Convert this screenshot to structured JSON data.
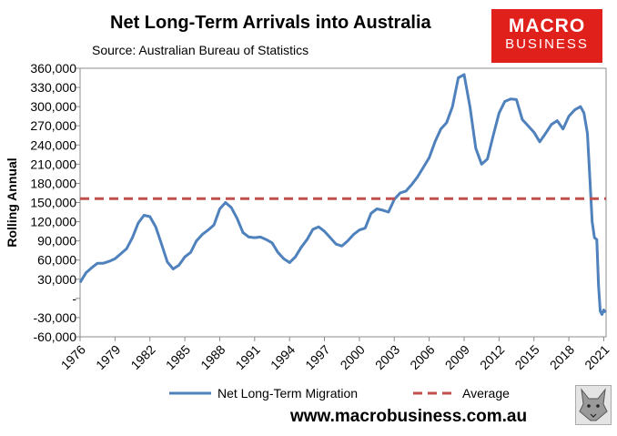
{
  "title": "Net Long-Term Arrivals into Australia",
  "subtitle": "Source: Australian Bureau of Statistics",
  "logo": {
    "top": "MACRO",
    "bottom": "BUSINESS"
  },
  "website": "www.macrobusiness.com.au",
  "colors": {
    "series": "#4f81bd",
    "average": "#c0504d",
    "brand": "#e0201b",
    "frame": "#8c8c8c"
  },
  "icons": {
    "mascot": "wolf-head-icon"
  },
  "chart_data": {
    "type": "line",
    "ylabel": "Rolling Annual",
    "ylim": [
      -60000,
      360000
    ],
    "xlim": [
      1976,
      2021.2
    ],
    "yticks": [
      -60000,
      -30000,
      0,
      30000,
      60000,
      90000,
      120000,
      150000,
      180000,
      210000,
      240000,
      270000,
      300000,
      330000,
      360000
    ],
    "ytick_labels": [
      "-60,000",
      "-30,000",
      "-",
      "30,000",
      "60,000",
      "90,000",
      "120,000",
      "150,000",
      "180,000",
      "210,000",
      "240,000",
      "270,000",
      "300,000",
      "330,000",
      "360,000"
    ],
    "xticks": [
      1976,
      1979,
      1982,
      1985,
      1988,
      1991,
      1994,
      1997,
      2000,
      2003,
      2006,
      2009,
      2012,
      2015,
      2018,
      2021
    ],
    "xtick_labels": [
      "1976",
      "1979",
      "1982",
      "1985",
      "1988",
      "1991",
      "1994",
      "1997",
      "2000",
      "2003",
      "2006",
      "2009",
      "2012",
      "2015",
      "2018",
      "2021"
    ],
    "grid": false,
    "legend": "bottom",
    "series": [
      {
        "name": "Net Long-Term Migration",
        "style": "solid",
        "x": [
          1976,
          1976.5,
          1977,
          1977.5,
          1978,
          1978.5,
          1979,
          1979.5,
          1980,
          1980.5,
          1981,
          1981.5,
          1982,
          1982.5,
          1983,
          1983.5,
          1984,
          1984.5,
          1985,
          1985.5,
          1986,
          1986.5,
          1987,
          1987.5,
          1988,
          1988.5,
          1989,
          1989.5,
          1990,
          1990.5,
          1991,
          1991.5,
          1992,
          1992.5,
          1993,
          1993.5,
          1994,
          1994.5,
          1995,
          1995.5,
          1996,
          1996.5,
          1997,
          1997.5,
          1998,
          1998.5,
          1999,
          1999.5,
          2000,
          2000.5,
          2001,
          2001.5,
          2002,
          2002.5,
          2003,
          2003.5,
          2004,
          2004.5,
          2005,
          2005.5,
          2006,
          2006.5,
          2007,
          2007.5,
          2008,
          2008.5,
          2009,
          2009.5,
          2010,
          2010.5,
          2011,
          2011.5,
          2012,
          2012.5,
          2013,
          2013.5,
          2014,
          2014.5,
          2015,
          2015.5,
          2016,
          2016.5,
          2017,
          2017.5,
          2018,
          2018.5,
          2019,
          2019.3,
          2019.6,
          2019.8,
          2020,
          2020.2,
          2020.4,
          2020.55,
          2020.7,
          2020.85,
          2021,
          2021.15
        ],
        "values": [
          25000,
          40000,
          48000,
          55000,
          55000,
          58000,
          62000,
          70000,
          78000,
          95000,
          118000,
          130000,
          128000,
          112000,
          85000,
          57000,
          46000,
          52000,
          65000,
          72000,
          90000,
          100000,
          107000,
          115000,
          140000,
          150000,
          142000,
          125000,
          103000,
          96000,
          95000,
          96000,
          92000,
          87000,
          72000,
          62000,
          56000,
          65000,
          80000,
          92000,
          108000,
          112000,
          105000,
          95000,
          85000,
          82000,
          90000,
          100000,
          107000,
          110000,
          133000,
          140000,
          138000,
          135000,
          155000,
          165000,
          168000,
          178000,
          190000,
          205000,
          220000,
          245000,
          265000,
          275000,
          300000,
          345000,
          350000,
          300000,
          235000,
          210000,
          218000,
          255000,
          290000,
          308000,
          312000,
          311000,
          280000,
          270000,
          260000,
          245000,
          258000,
          272000,
          278000,
          265000,
          285000,
          295000,
          300000,
          290000,
          258000,
          190000,
          120000,
          95000,
          92000,
          20000,
          -20000,
          -25000,
          -18000,
          -22000
        ]
      },
      {
        "name": "Average",
        "style": "dashed",
        "x": [
          1976,
          2021.2
        ],
        "values": [
          156000,
          156000
        ]
      }
    ]
  }
}
